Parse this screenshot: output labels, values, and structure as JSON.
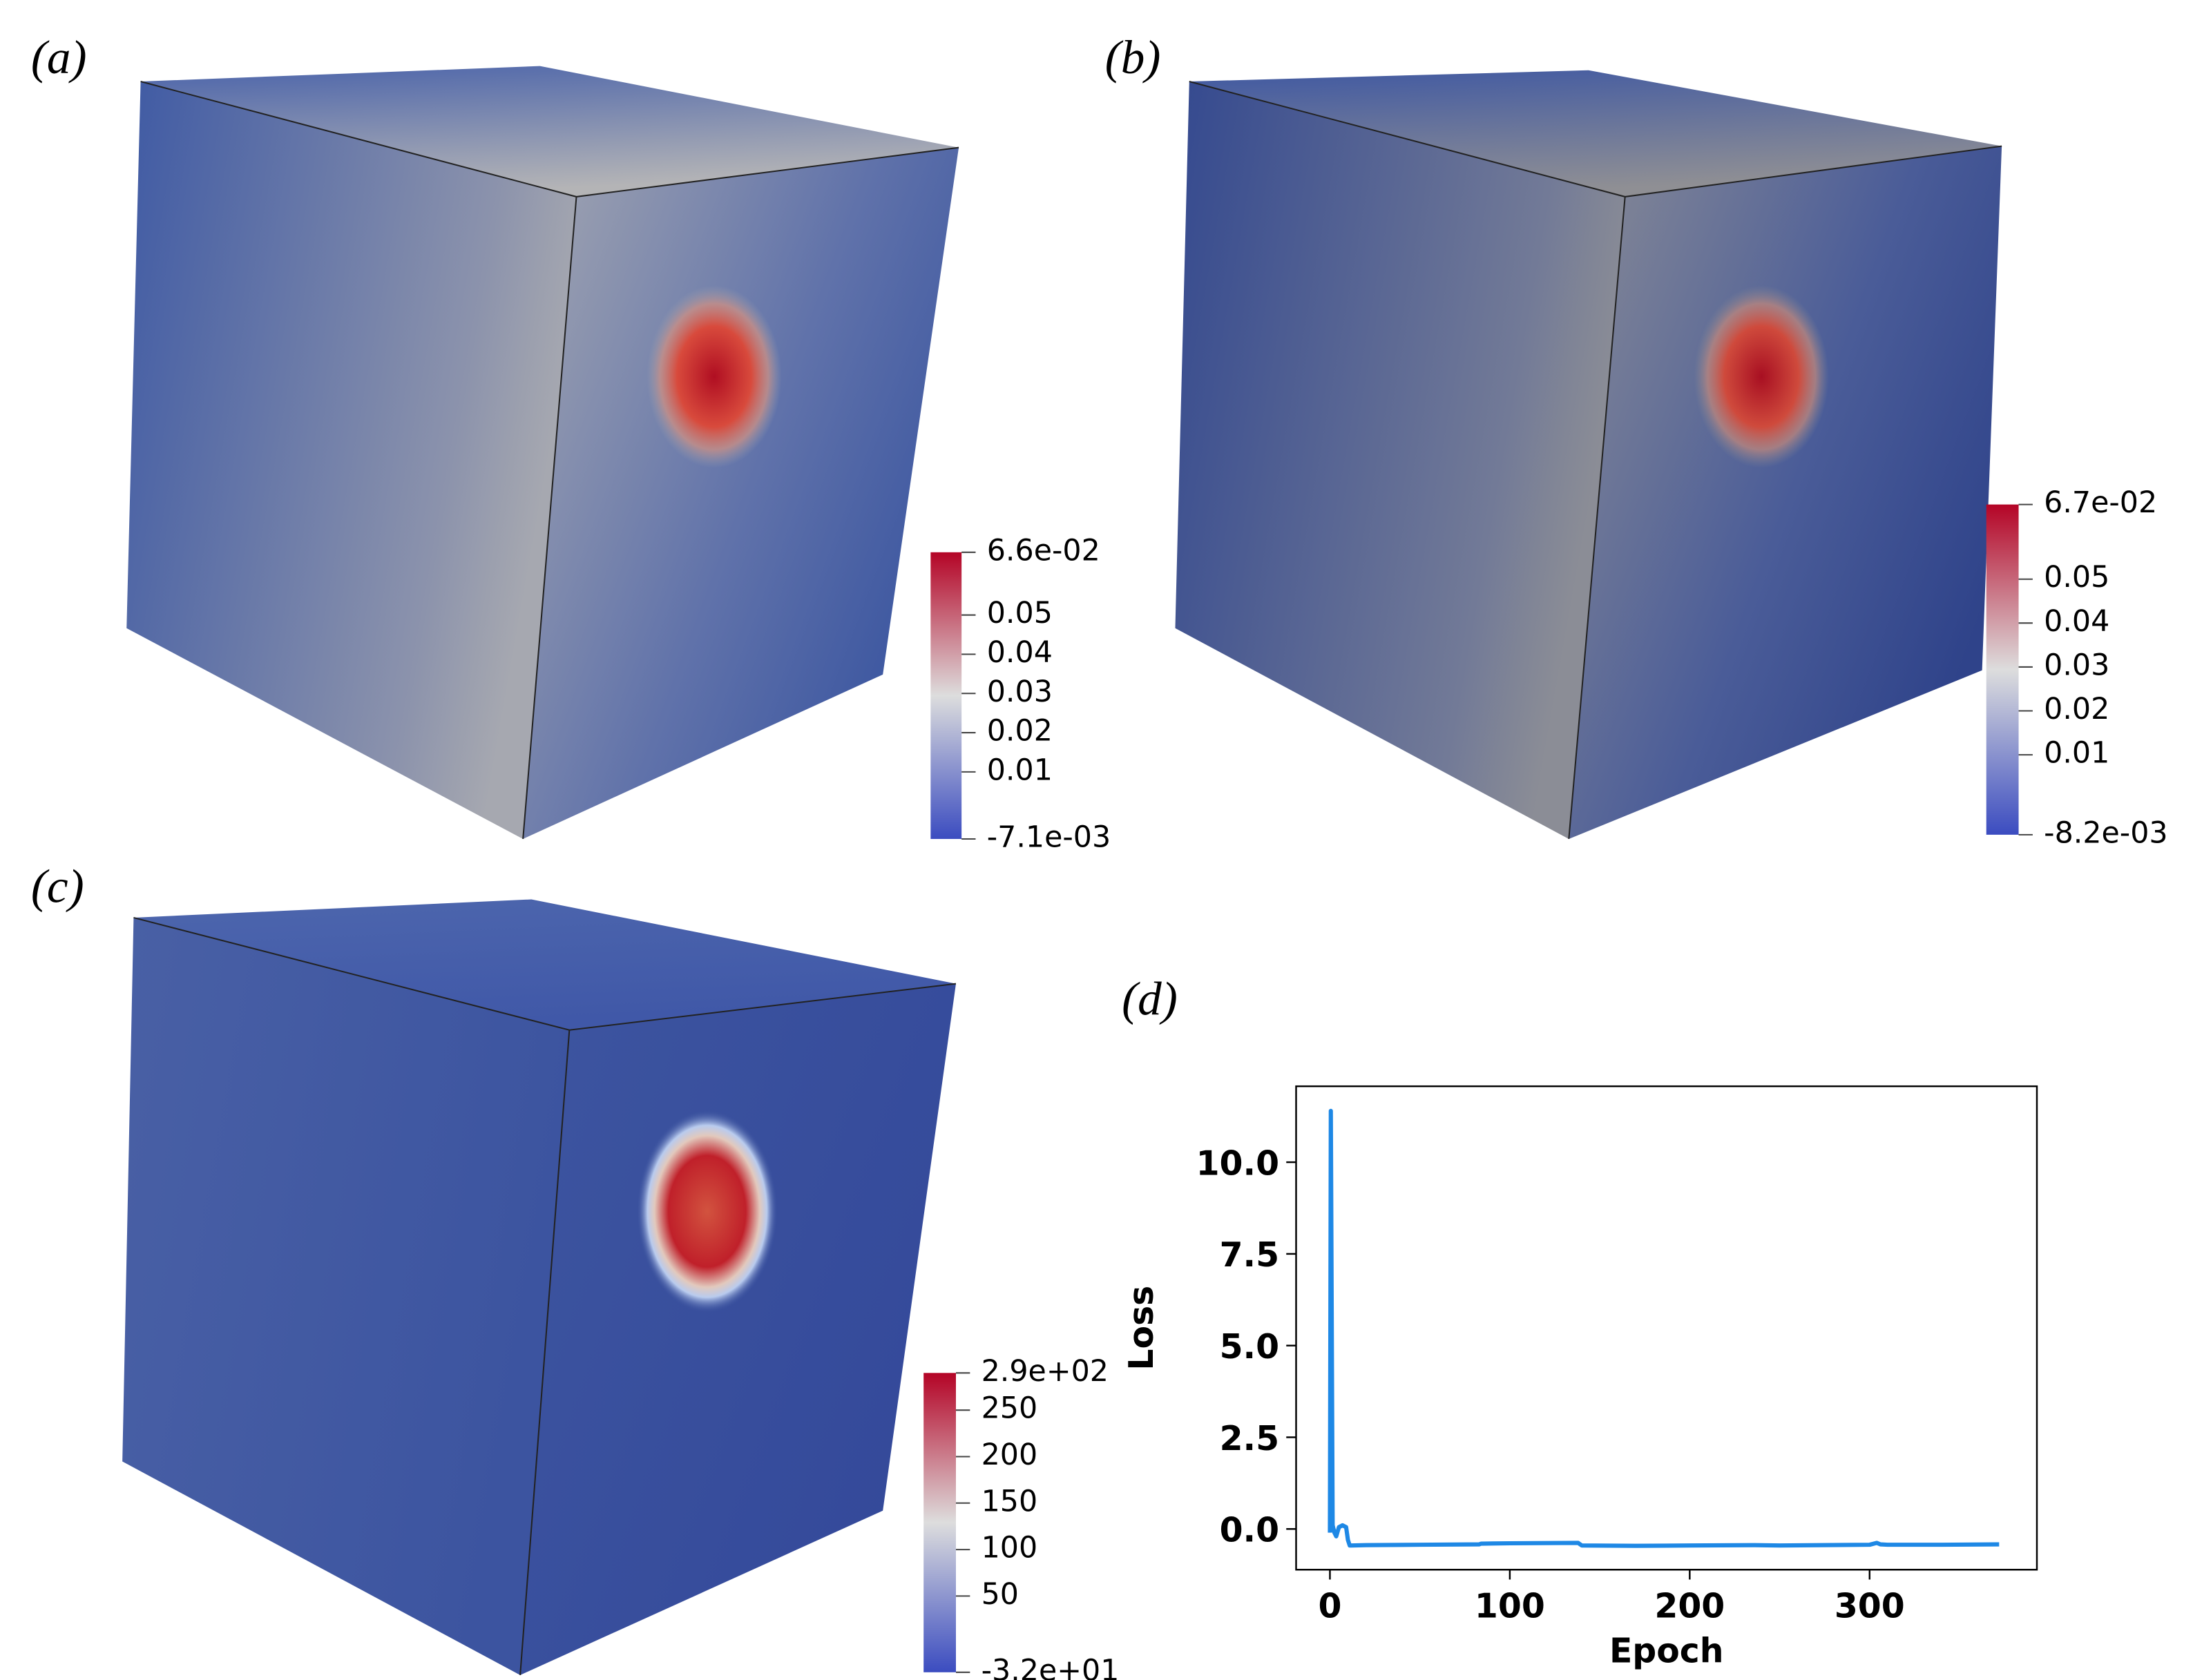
{
  "chart_data": [
    {
      "type": "surface",
      "label": "(a)",
      "clim": [
        -0.0071,
        0.066
      ],
      "ticks": [
        {
          "value": 0.066,
          "label": "6.6e-02"
        },
        0.05,
        0.04,
        0.03,
        0.02,
        0.01,
        {
          "value": -0.0071,
          "label": "-7.1e-03"
        }
      ],
      "colormap": [
        "#3b4cc0",
        "#dddddd",
        "#b40426"
      ]
    },
    {
      "type": "surface",
      "label": "(b)",
      "clim": [
        -0.0082,
        0.067
      ],
      "ticks": [
        {
          "value": 0.067,
          "label": "6.7e-02"
        },
        0.05,
        0.04,
        0.03,
        0.02,
        0.01,
        {
          "value": -0.0082,
          "label": "-8.2e-03"
        }
      ],
      "colormap": [
        "#3b4cc0",
        "#dddddd",
        "#b40426"
      ]
    },
    {
      "type": "surface",
      "label": "(c)",
      "clim": [
        -32,
        290
      ],
      "ticks": [
        {
          "value": 290,
          "label": "2.9e+02"
        },
        250,
        200,
        150,
        100,
        50,
        {
          "value": -32,
          "label": "-3.2e+01"
        }
      ],
      "colormap": [
        "#3b4cc0",
        "#dddddd",
        "#b40426"
      ]
    },
    {
      "type": "line",
      "label": "(d)",
      "x_label": "Epoch",
      "y_label": "Loss",
      "xlim": [
        -18.8,
        393
      ],
      "ylim": [
        -1.11,
        12.07
      ],
      "xticks": [
        0,
        100,
        200,
        300
      ],
      "yticks": [
        {
          "value": 0,
          "label": "0.0"
        },
        2.5,
        {
          "value": 5,
          "label": "5.0"
        },
        7.5,
        {
          "value": 10,
          "label": "10.0"
        }
      ],
      "series": [
        {
          "color": "#1e88e5",
          "x": [
            0,
            0.5,
            1.5,
            2.5,
            3.5,
            5,
            7,
            9,
            10,
            11,
            12,
            20,
            50,
            83,
            84,
            100,
            138,
            140,
            170,
            200,
            236,
            250,
            300,
            304,
            306,
            310,
            340,
            372
          ],
          "values": [
            -0.1,
            11.4,
            0.1,
            -0.1,
            -0.2,
            0.05,
            0.1,
            0.05,
            -0.3,
            -0.45,
            -0.45,
            -0.44,
            -0.43,
            -0.42,
            -0.4,
            -0.39,
            -0.38,
            -0.45,
            -0.46,
            -0.45,
            -0.44,
            -0.45,
            -0.43,
            -0.38,
            -0.42,
            -0.43,
            -0.43,
            -0.42
          ]
        }
      ]
    }
  ]
}
